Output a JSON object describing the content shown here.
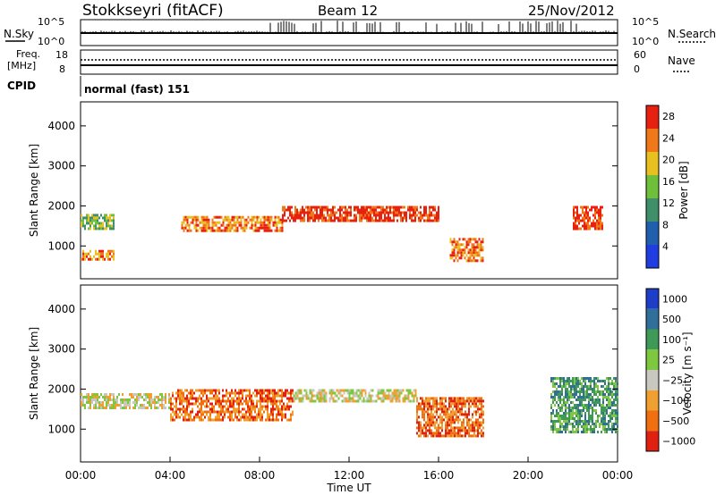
{
  "header": {
    "station": "Stokkseyri (fitACF)",
    "beam": "Beam 12",
    "date": "25/Nov/2012"
  },
  "noise_panel": {
    "left_label": "N.Sky",
    "left_ticks": [
      "10^5",
      "10^0"
    ],
    "right_label": "N.Search",
    "right_ticks": [
      "10^5",
      "10^0"
    ]
  },
  "freq_panel": {
    "left_label_line1": "Freq.",
    "left_label_line2": "[MHz]",
    "left_ticks": [
      "18",
      "8"
    ],
    "right_label": "Nave",
    "right_ticks": [
      "60",
      "0"
    ]
  },
  "cpid": {
    "label": "CPID",
    "value": "normal (fast) 151"
  },
  "chart_data": [
    {
      "type": "heatmap",
      "panel": "power",
      "ylabel": "Slant Range [km]",
      "ylim": [
        180,
        4600
      ],
      "yticks": [
        1000,
        2000,
        3000,
        4000
      ],
      "xlim": [
        0,
        24
      ],
      "colorbar_label": "Power [dB]",
      "colorbar_ticks": [
        "4",
        "8",
        "12",
        "16",
        "20",
        "24",
        "28"
      ],
      "colorbar_colors": [
        "#1f3de0",
        "#1f5fae",
        "#3f8f6a",
        "#6fbf3a",
        "#e8c020",
        "#f07818",
        "#e82010"
      ],
      "echo_bands": [
        {
          "t0": 0.0,
          "t1": 1.5,
          "r0": 1450,
          "r1": 1800,
          "level": 3
        },
        {
          "t0": 0.0,
          "t1": 1.5,
          "r0": 650,
          "r1": 900,
          "level": 5
        },
        {
          "t0": 4.5,
          "t1": 9.0,
          "r0": 1350,
          "r1": 1750,
          "level": 5
        },
        {
          "t0": 9.0,
          "t1": 16.0,
          "r0": 1600,
          "r1": 2000,
          "level": 6
        },
        {
          "t0": 16.5,
          "t1": 18.0,
          "r0": 600,
          "r1": 1200,
          "level": 5
        },
        {
          "t0": 22.0,
          "t1": 23.3,
          "r0": 1400,
          "r1": 2000,
          "level": 6
        }
      ]
    },
    {
      "type": "heatmap",
      "panel": "velocity",
      "ylabel": "Slant Range [km]",
      "ylim": [
        180,
        4600
      ],
      "yticks": [
        1000,
        2000,
        3000,
        4000
      ],
      "xlim": [
        0,
        24
      ],
      "xticks": [
        "00:00",
        "04:00",
        "08:00",
        "12:00",
        "16:00",
        "20:00",
        "00:00"
      ],
      "xlabel": "Time UT",
      "colorbar_label": "Velocity [m s⁻¹]",
      "colorbar_ticks": [
        "1000",
        "500",
        "100",
        "25",
        "−25",
        "−100",
        "−500",
        "−1000"
      ],
      "colorbar_colors": [
        "#1f3ec8",
        "#2f6f9a",
        "#3f9a58",
        "#7ec840",
        "#c8c8c0",
        "#f0a030",
        "#f07010",
        "#e02010"
      ],
      "echo_bands": [
        {
          "t0": 0.0,
          "t1": 4.0,
          "r0": 1550,
          "r1": 1900,
          "level": 4
        },
        {
          "t0": 4.0,
          "t1": 9.5,
          "r0": 1200,
          "r1": 2000,
          "level": 6
        },
        {
          "t0": 9.5,
          "t1": 15.0,
          "r0": 1700,
          "r1": 2000,
          "level": 4
        },
        {
          "t0": 15.0,
          "t1": 18.0,
          "r0": 800,
          "r1": 1800,
          "level": 6
        },
        {
          "t0": 21.0,
          "t1": 24.0,
          "r0": 900,
          "r1": 2300,
          "level": 2
        }
      ]
    }
  ]
}
